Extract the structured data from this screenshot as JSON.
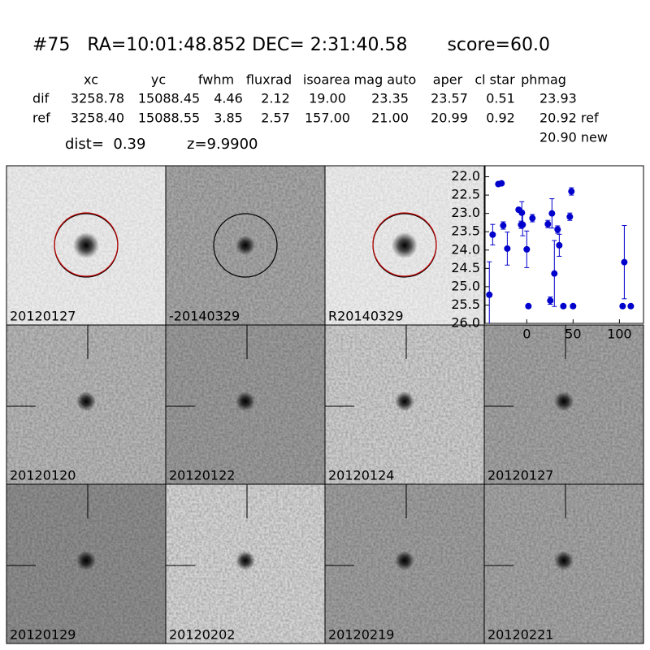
{
  "header": {
    "title": "#75   RA=10:01:48.852 DEC= 2:31:40.58       score=60.0",
    "columns": [
      "xc",
      "yc",
      "fwhm",
      "fluxrad",
      "isoarea",
      "mag auto",
      "aper",
      "cl star",
      "phmag"
    ],
    "rows": [
      {
        "label": "dif",
        "values": [
          "3258.78",
          "15088.45",
          "4.46",
          "2.12",
          "19.00",
          "23.35",
          "23.57",
          "0.51",
          "23.93"
        ]
      },
      {
        "label": "ref",
        "values": [
          "3258.40",
          "15088.55",
          "3.85",
          "2.57",
          "157.00",
          "21.00",
          "20.99",
          "0.92",
          "20.92 ref"
        ]
      }
    ],
    "dist": "dist=  0.39",
    "z": "z=9.9900",
    "phmag_new": "20.90 new"
  },
  "stamps": [
    [
      {
        "label": "20120127"
      },
      {
        "label": "-20140329"
      },
      {
        "label": "R20140329"
      }
    ],
    [
      {
        "label": "20120120"
      },
      {
        "label": "20120122"
      },
      {
        "label": "20120124"
      },
      {
        "label": "20120127",
        "color": "#ff0000"
      }
    ],
    [
      {
        "label": "20120129"
      },
      {
        "label": "20120202"
      },
      {
        "label": "20120219"
      },
      {
        "label": "20120221"
      }
    ]
  ],
  "chart_data": {
    "type": "errorbar",
    "color": "#0000cc",
    "x": [
      -40.4,
      -36.8,
      -30.7,
      -27.2,
      -25.4,
      -21,
      -8.8,
      -6.1,
      -5.3,
      -4.4,
      0,
      1.8,
      6.1,
      22.8,
      25.4,
      27.2,
      29.8,
      33.3,
      35.1,
      39.5,
      46.5,
      48.2,
      50,
      105.3,
      103.5,
      112.3
    ],
    "values": [
      25.22,
      23.58,
      22.2,
      22.18,
      23.33,
      23.96,
      22.9,
      23.31,
      22.98,
      23.31,
      23.98,
      25.53,
      23.13,
      23.29,
      25.38,
      23.0,
      24.64,
      23.44,
      23.87,
      25.53,
      23.09,
      22.4,
      25.53,
      24.33,
      25.53,
      25.53
    ],
    "errors": [
      0.9,
      0.28,
      0.05,
      0.05,
      0.1,
      0.45,
      0.05,
      0.1,
      0.3,
      0.3,
      0.5,
      0.05,
      0.1,
      0.1,
      0.1,
      0.4,
      0.9,
      0.1,
      0.3,
      0.05,
      0.1,
      0.1,
      0.05,
      1.0,
      0.05,
      0.05
    ],
    "xlim": [
      -45,
      126
    ],
    "ylim": [
      26.0,
      21.7
    ],
    "y_inverted": true,
    "xticks": [
      0,
      50,
      100
    ],
    "yticks": [
      {
        "value": 22.0,
        "label": "22.0"
      },
      {
        "value": 22.5,
        "label": "22.5"
      },
      {
        "value": 23.0,
        "label": "23.0"
      },
      {
        "value": 23.5,
        "label": "23.5"
      },
      {
        "value": 24.0,
        "label": "24.0"
      },
      {
        "value": 24.5,
        "label": "24.5"
      },
      {
        "value": 25.0,
        "label": "25.0"
      },
      {
        "value": 25.5,
        "label": "25.5"
      },
      {
        "value": 26.0,
        "label": "26.0"
      }
    ]
  }
}
